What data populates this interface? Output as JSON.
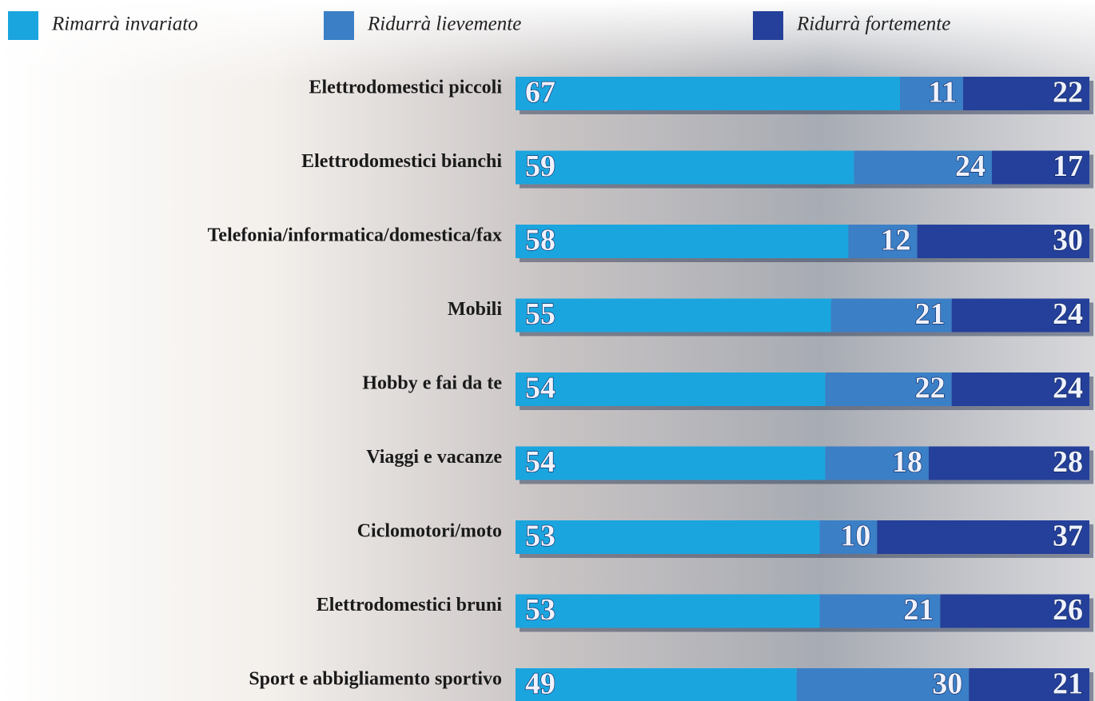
{
  "chart_data": {
    "type": "stacked-bar-horizontal",
    "categories": [
      "Elettrodomestici piccoli",
      "Elettrodomestici bianchi",
      "Telefonia/informatica/domestica/fax",
      "Mobili",
      "Hobby e fai da te",
      "Viaggi e vacanze",
      "Ciclomotori/moto",
      "Elettrodomestici bruni",
      "Sport e abbigliamento sportivo"
    ],
    "series": [
      {
        "name": "Rimarrà invariato",
        "color": "#1ba5df",
        "values": [
          67,
          59,
          58,
          55,
          54,
          54,
          53,
          53,
          49
        ]
      },
      {
        "name": "Ridurrà lievemente",
        "color": "#3b7fc6",
        "values": [
          11,
          24,
          12,
          21,
          22,
          18,
          10,
          21,
          30
        ]
      },
      {
        "name": "Ridurrà fortemente",
        "color": "#24409a",
        "values": [
          22,
          17,
          30,
          24,
          24,
          28,
          37,
          26,
          21
        ]
      }
    ]
  }
}
